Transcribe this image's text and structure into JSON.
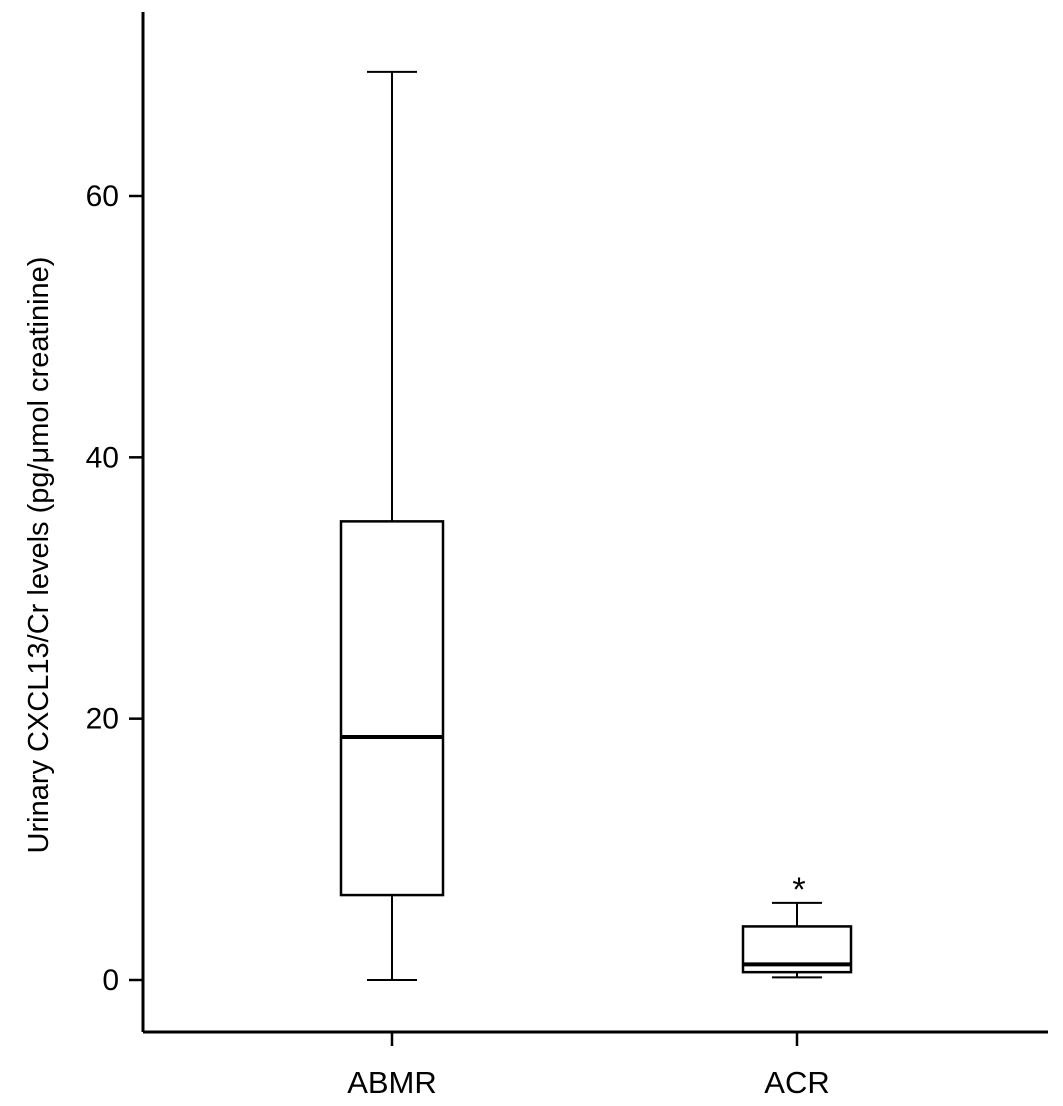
{
  "chart_data": {
    "type": "box",
    "ylabel": "Urinary CXCL13/Cr levels (pg/μmol creatinine)",
    "ylim": [
      -4,
      74
    ],
    "yticks": [
      0,
      20,
      40,
      60
    ],
    "grid": false,
    "legend": "none",
    "categories": [
      "ABMR",
      "ACR"
    ],
    "boxes": [
      {
        "category": "ABMR",
        "min": 0,
        "q1": 6.5,
        "median": 18.6,
        "q3": 35.1,
        "max": 69.5,
        "annotation": ""
      },
      {
        "category": "ACR",
        "min": 0.2,
        "q1": 0.6,
        "median": 1.2,
        "q3": 4.1,
        "max": 5.9,
        "annotation": "*"
      }
    ]
  }
}
